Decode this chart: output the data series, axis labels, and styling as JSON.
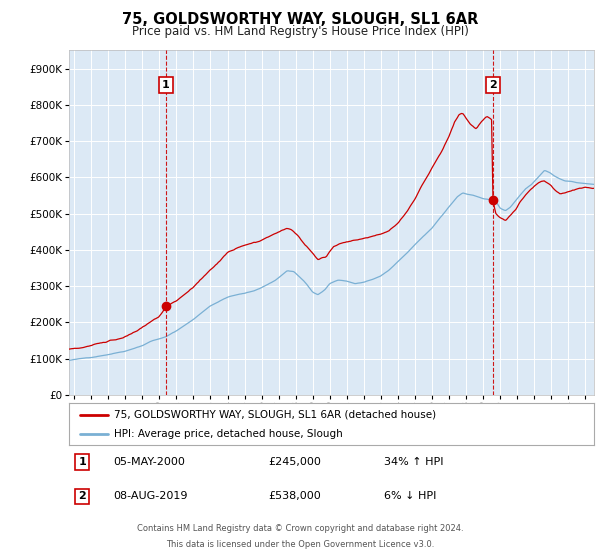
{
  "title": "75, GOLDSWORTHY WAY, SLOUGH, SL1 6AR",
  "subtitle": "Price paid vs. HM Land Registry's House Price Index (HPI)",
  "bg_color": "#dce9f5",
  "red_color": "#cc0000",
  "blue_color": "#7ab0d4",
  "annotation1_date": 2000.37,
  "annotation1_value": 245000,
  "annotation1_label": "1",
  "annotation2_date": 2019.58,
  "annotation2_value": 538000,
  "annotation2_label": "2",
  "legend_line1": "75, GOLDSWORTHY WAY, SLOUGH, SL1 6AR (detached house)",
  "legend_line2": "HPI: Average price, detached house, Slough",
  "table_row1_label": "1",
  "table_row1_date": "05-MAY-2000",
  "table_row1_price": "£245,000",
  "table_row1_change": "34% ↑ HPI",
  "table_row2_label": "2",
  "table_row2_date": "08-AUG-2019",
  "table_row2_price": "£538,000",
  "table_row2_change": "6% ↓ HPI",
  "footer1": "Contains HM Land Registry data © Crown copyright and database right 2024.",
  "footer2": "This data is licensed under the Open Government Licence v3.0.",
  "ylim_min": 0,
  "ylim_max": 950000,
  "xlim_min": 1994.7,
  "xlim_max": 2025.5
}
